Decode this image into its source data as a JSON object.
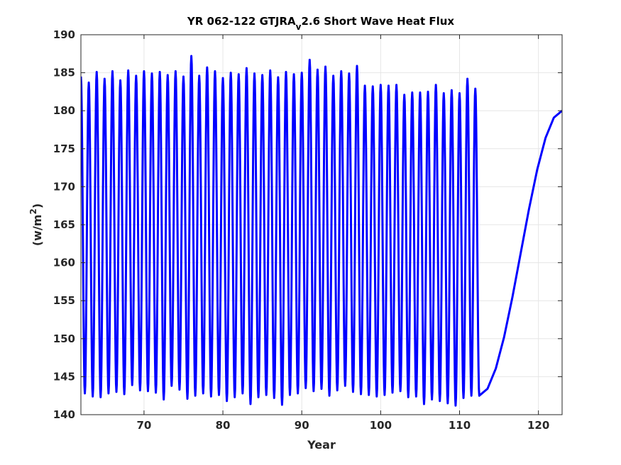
{
  "chart_data": {
    "type": "line",
    "title": {
      "main": "YR 062-122 GTJRA",
      "subscript": "v",
      "rest": "2.6 Short Wave Heat Flux"
    },
    "xlabel": "Year",
    "ylabel": {
      "prefix": "(w/m",
      "superscript": "2",
      "suffix": ")"
    },
    "xlim": [
      62,
      123
    ],
    "ylim": [
      140,
      190
    ],
    "xticks": [
      70,
      80,
      90,
      100,
      110,
      120
    ],
    "yticks": [
      140,
      145,
      150,
      155,
      160,
      165,
      170,
      175,
      180,
      185,
      190
    ],
    "grid": true,
    "line_color": "#0000ff",
    "series": [
      {
        "x_start": 62,
        "step": 0.5,
        "maxima": [
          184.5,
          183.7,
          185.1,
          184.2,
          185.2,
          184.0,
          185.3,
          184.6,
          185.2,
          184.9,
          185.1,
          184.7,
          185.2,
          184.5,
          187.2,
          184.6,
          185.7,
          185.2,
          184.3,
          185.0,
          184.8,
          185.6,
          184.9,
          184.7,
          185.3,
          184.4,
          185.1,
          184.8,
          185.0,
          186.7,
          185.4,
          185.8,
          184.6,
          185.2,
          184.9,
          185.9,
          183.3,
          183.2,
          183.4,
          183.3,
          183.4,
          182.1,
          182.4,
          182.4,
          182.5,
          183.4,
          182.3,
          182.7,
          182.3,
          184.2,
          182.9
        ],
        "minima": [
          142.8,
          142.4,
          142.3,
          142.8,
          143.0,
          142.7,
          143.9,
          143.2,
          143.1,
          142.9,
          142.0,
          143.8,
          143.3,
          142.1,
          142.5,
          142.8,
          142.4,
          142.6,
          141.8,
          142.3,
          142.8,
          141.4,
          142.3,
          142.6,
          142.2,
          141.3,
          142.6,
          142.8,
          143.5,
          143.1,
          143.4,
          142.5,
          143.2,
          143.8,
          143.0,
          142.7,
          142.6,
          142.4,
          142.6,
          142.9,
          143.1,
          142.3,
          142.4,
          141.4,
          142.0,
          141.8,
          141.5,
          141.2,
          142.2,
          142.5,
          142.5
        ],
        "end_value": 180.0
      }
    ]
  }
}
